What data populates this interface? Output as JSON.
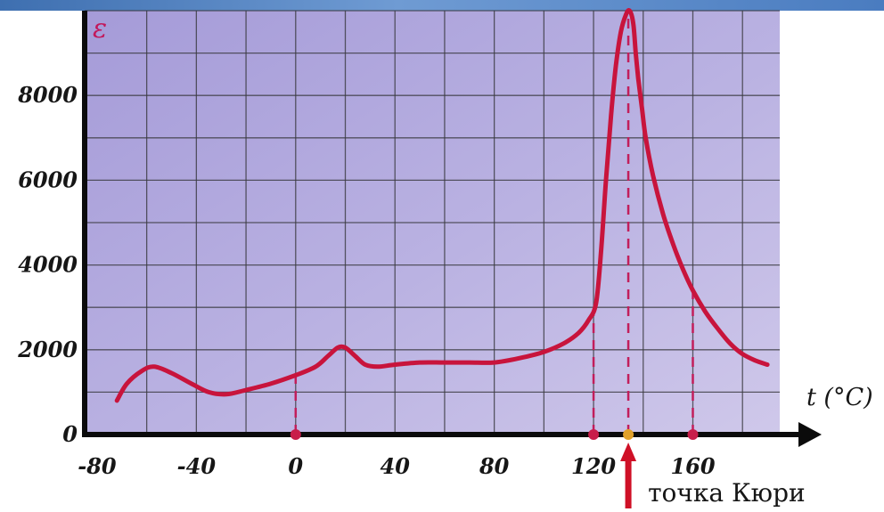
{
  "chart_data": {
    "type": "line",
    "ylabel": "ε",
    "xlabel": "t (°C)",
    "xlim": [
      -85,
      195
    ],
    "ylim": [
      0,
      10000
    ],
    "x_ticks": [
      "-80",
      "-40",
      "0",
      "40",
      "80",
      "120",
      "160"
    ],
    "y_ticks": [
      "0",
      "2000",
      "4000",
      "6000",
      "8000"
    ],
    "grid": true,
    "series": [
      {
        "x": [
          -72,
          -68,
          -62,
          -57,
          -50,
          -42,
          -35,
          -28,
          -20,
          -10,
          0,
          8,
          13,
          17,
          20,
          24,
          28,
          33,
          40,
          50,
          60,
          70,
          80,
          90,
          100,
          108,
          114,
          118,
          121,
          123,
          125,
          127,
          129,
          131,
          133,
          134.5,
          136,
          137,
          138,
          139.5,
          141,
          144,
          148,
          152,
          156,
          160,
          165,
          170,
          175,
          180,
          185,
          190
        ],
        "y": [
          800,
          1200,
          1500,
          1600,
          1450,
          1200,
          1000,
          950,
          1050,
          1200,
          1400,
          1600,
          1850,
          2050,
          2050,
          1850,
          1650,
          1600,
          1650,
          1700,
          1700,
          1700,
          1700,
          1800,
          1950,
          2150,
          2400,
          2700,
          3100,
          4300,
          6000,
          7500,
          8700,
          9500,
          9900,
          10000,
          9700,
          9000,
          8400,
          7700,
          7000,
          6100,
          5200,
          4500,
          3900,
          3400,
          2900,
          2500,
          2150,
          1900,
          1750,
          1650
        ]
      }
    ],
    "markers": [
      {
        "x": 0,
        "y": 0
      },
      {
        "x": 120,
        "y": 0
      },
      {
        "x": 134,
        "y": 0
      },
      {
        "x": 160,
        "y": 0
      }
    ],
    "annotation": "точка Кюри",
    "annotation_x": 134
  },
  "colors": {
    "plot_bg": "#b4aadf",
    "grid": "#3a3a40",
    "curve": "#c8143c",
    "dashed": "#c21e5b",
    "marker": "#c81e4a",
    "curie_marker": "#e0a12a",
    "axis": "#0b0b0b"
  }
}
